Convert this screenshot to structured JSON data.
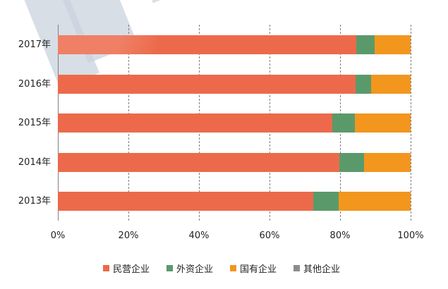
{
  "chart_data": {
    "type": "bar",
    "orientation": "horizontal",
    "stacked": true,
    "percent_stacked": true,
    "title": "",
    "xlabel": "",
    "ylabel": "",
    "categories": [
      "2017年",
      "2016年",
      "2015年",
      "2014年",
      "2013年"
    ],
    "series": [
      {
        "name": "民营企业",
        "color": "#ec6a4b",
        "values": [
          84.6,
          84.3,
          77.7,
          79.7,
          72.3
        ]
      },
      {
        "name": "外资企业",
        "color": "#5a9a6a",
        "values": [
          5.2,
          4.5,
          6.5,
          7.0,
          7.2
        ]
      },
      {
        "name": "国有企业",
        "color": "#f2961e",
        "values": [
          10.2,
          11.2,
          15.8,
          13.3,
          20.5
        ]
      },
      {
        "name": "其他企业",
        "color": "#8c8c8c",
        "values": [
          0,
          0,
          0,
          0,
          0
        ]
      }
    ],
    "xlim": [
      0,
      100
    ],
    "x_ticks": [
      "0%",
      "20%",
      "40%",
      "60%",
      "80%",
      "100%"
    ],
    "grid": {
      "vertical": true,
      "style": "dashed"
    },
    "legend": {
      "position": "bottom"
    }
  },
  "y_labels": [
    "2017年",
    "2016年",
    "2015年",
    "2014年",
    "2013年"
  ],
  "x_ticks": [
    "0%",
    "20%",
    "40%",
    "60%",
    "80%",
    "100%"
  ],
  "legend": [
    {
      "label": "民营企业",
      "color": "#ec6a4b"
    },
    {
      "label": "外资企业",
      "color": "#5a9a6a"
    },
    {
      "label": "国有企业",
      "color": "#f2961e"
    },
    {
      "label": "其他企业",
      "color": "#8c8c8c"
    }
  ]
}
